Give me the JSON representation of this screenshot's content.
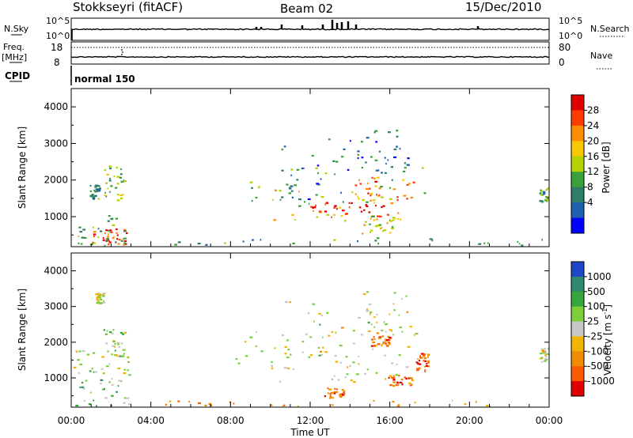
{
  "header": {
    "station": "Stokkseyri (fitACF)",
    "beam": "Beam 02",
    "date": "15/Dec/2010"
  },
  "top_panels": {
    "nsky_label": "N.Sky",
    "nsky_ticks": [
      "10^5",
      "10^0"
    ],
    "nsearch_label": "N.Search",
    "nsearch_ticks": [
      "10^5",
      "10^0"
    ],
    "freq_label_1": "Freq.",
    "freq_label_2": "[MHz]",
    "freq_ticks": [
      "18",
      "8"
    ],
    "nave_label": "Nave",
    "nave_ticks": [
      "80",
      "0"
    ],
    "cpid_label": "CPID",
    "cpid_text": "normal 150"
  },
  "chart_data": [
    {
      "type": "heatmap",
      "name": "power",
      "ylabel": "Slant Range [km]",
      "xlabel": "",
      "ylim": [
        180,
        4500
      ],
      "yticks": [
        1000,
        2000,
        3000,
        4000
      ],
      "colorbar_label": "Power [dB]",
      "colorbar_ticks": [
        "28",
        "24",
        "20",
        "16",
        "12",
        "8",
        "4"
      ],
      "colorbar_colors": [
        "#e00000",
        "#ff3c00",
        "#ff8c00",
        "#f5c800",
        "#b4d200",
        "#3aa03a",
        "#2e7d6a",
        "#1f5fb0",
        "#0000ff"
      ],
      "echo_regions": [
        {
          "t": [
            0.9,
            2.8
          ],
          "r": [
            250,
            700
          ],
          "level": 0.85
        },
        {
          "t": [
            0.3,
            2.9
          ],
          "r": [
            200,
            1100
          ],
          "level": 0.4
        },
        {
          "t": [
            1.6,
            2.7
          ],
          "r": [
            1400,
            2400
          ],
          "level": 0.4
        },
        {
          "t": [
            0.9,
            1.4
          ],
          "r": [
            1500,
            1900
          ],
          "level": 0.3
        },
        {
          "t": [
            8.2,
            18.0
          ],
          "r": [
            1400,
            2400
          ],
          "level": 0.4
        },
        {
          "t": [
            10.0,
            16.5
          ],
          "r": [
            900,
            1800
          ],
          "level": 0.6
        },
        {
          "t": [
            12.0,
            16.0
          ],
          "r": [
            1000,
            1400
          ],
          "level": 0.95
        },
        {
          "t": [
            14.0,
            17.5
          ],
          "r": [
            1400,
            2100
          ],
          "level": 0.75
        },
        {
          "t": [
            10.5,
            14.5
          ],
          "r": [
            1300,
            3200
          ],
          "level": 0.25
        },
        {
          "t": [
            14.5,
            17.0
          ],
          "r": [
            2200,
            3400
          ],
          "level": 0.25
        },
        {
          "t": [
            14.5,
            16.5
          ],
          "r": [
            550,
            1000
          ],
          "level": 0.55
        },
        {
          "t": [
            23.5,
            24.0
          ],
          "r": [
            1400,
            1800
          ],
          "level": 0.35
        },
        {
          "t": [
            0.0,
            24.0
          ],
          "r": [
            180,
            450
          ],
          "level": 0.3
        }
      ]
    },
    {
      "type": "heatmap",
      "name": "velocity",
      "ylabel": "Slant Range [km]",
      "xlabel": "Time UT",
      "xlim": [
        0,
        24
      ],
      "xticks": [
        "00:00",
        "04:00",
        "08:00",
        "12:00",
        "16:00",
        "20:00",
        "00:00"
      ],
      "ylim": [
        180,
        4500
      ],
      "yticks": [
        1000,
        2000,
        3000,
        4000
      ],
      "colorbar_label": "Velocity [m s^-1]",
      "colorbar_ticks": [
        "1000",
        "500",
        "100",
        "25",
        "-25",
        "-100",
        "-500",
        "-1000"
      ],
      "colorbar_colors": [
        "#1f46c8",
        "#2e8a6e",
        "#34a63c",
        "#7ccf3a",
        "#c8c8c8",
        "#f2b400",
        "#f08a00",
        "#ff5a00",
        "#e00000"
      ],
      "echo_regions": [
        {
          "t": [
            0.2,
            2.9
          ],
          "r": [
            200,
            1000
          ],
          "level": 0.65
        },
        {
          "t": [
            0.1,
            2.9
          ],
          "r": [
            1100,
            1800
          ],
          "level": 0.5
        },
        {
          "t": [
            1.2,
            1.6
          ],
          "r": [
            3100,
            3400
          ],
          "level": 0.5
        },
        {
          "t": [
            1.6,
            2.7
          ],
          "r": [
            1600,
            2400
          ],
          "level": 0.55
        },
        {
          "t": [
            8.2,
            18.0
          ],
          "r": [
            1300,
            2400
          ],
          "level": 0.5
        },
        {
          "t": [
            10.0,
            16.5
          ],
          "r": [
            900,
            1800
          ],
          "level": 0.5
        },
        {
          "t": [
            10.5,
            14.5
          ],
          "r": [
            1300,
            3200
          ],
          "level": 0.5
        },
        {
          "t": [
            14.5,
            17.0
          ],
          "r": [
            2200,
            3500
          ],
          "level": 0.5
        },
        {
          "t": [
            12.7,
            13.7
          ],
          "r": [
            450,
            750
          ],
          "level": 0.2
        },
        {
          "t": [
            15.7,
            17.2
          ],
          "r": [
            800,
            1100
          ],
          "level": 0.2
        },
        {
          "t": [
            17.3,
            17.9
          ],
          "r": [
            1200,
            1700
          ],
          "level": 0.2
        },
        {
          "t": [
            15.0,
            16.0
          ],
          "r": [
            1900,
            2200
          ],
          "level": 0.25
        },
        {
          "t": [
            23.5,
            24.0
          ],
          "r": [
            1450,
            1850
          ],
          "level": 0.5
        },
        {
          "t": [
            4.0,
            22.0
          ],
          "r": [
            180,
            400
          ],
          "level": 0.3
        }
      ]
    }
  ],
  "colors": {
    "axes": "#000000",
    "background": "#ffffff"
  }
}
